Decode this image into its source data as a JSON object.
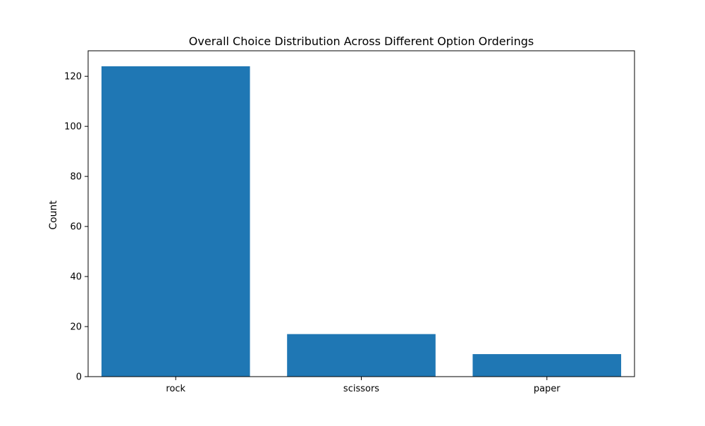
{
  "chart_data": {
    "type": "bar",
    "title": "Overall Choice Distribution Across Different Option Orderings",
    "xlabel": "",
    "ylabel": "Count",
    "categories": [
      "rock",
      "scissors",
      "paper"
    ],
    "values": [
      124,
      17,
      9
    ],
    "ylim": [
      0,
      130.2
    ],
    "yticks": [
      0,
      20,
      40,
      60,
      80,
      100,
      120
    ],
    "grid": false,
    "legend": "none",
    "bar_color": "#1f77b4"
  }
}
